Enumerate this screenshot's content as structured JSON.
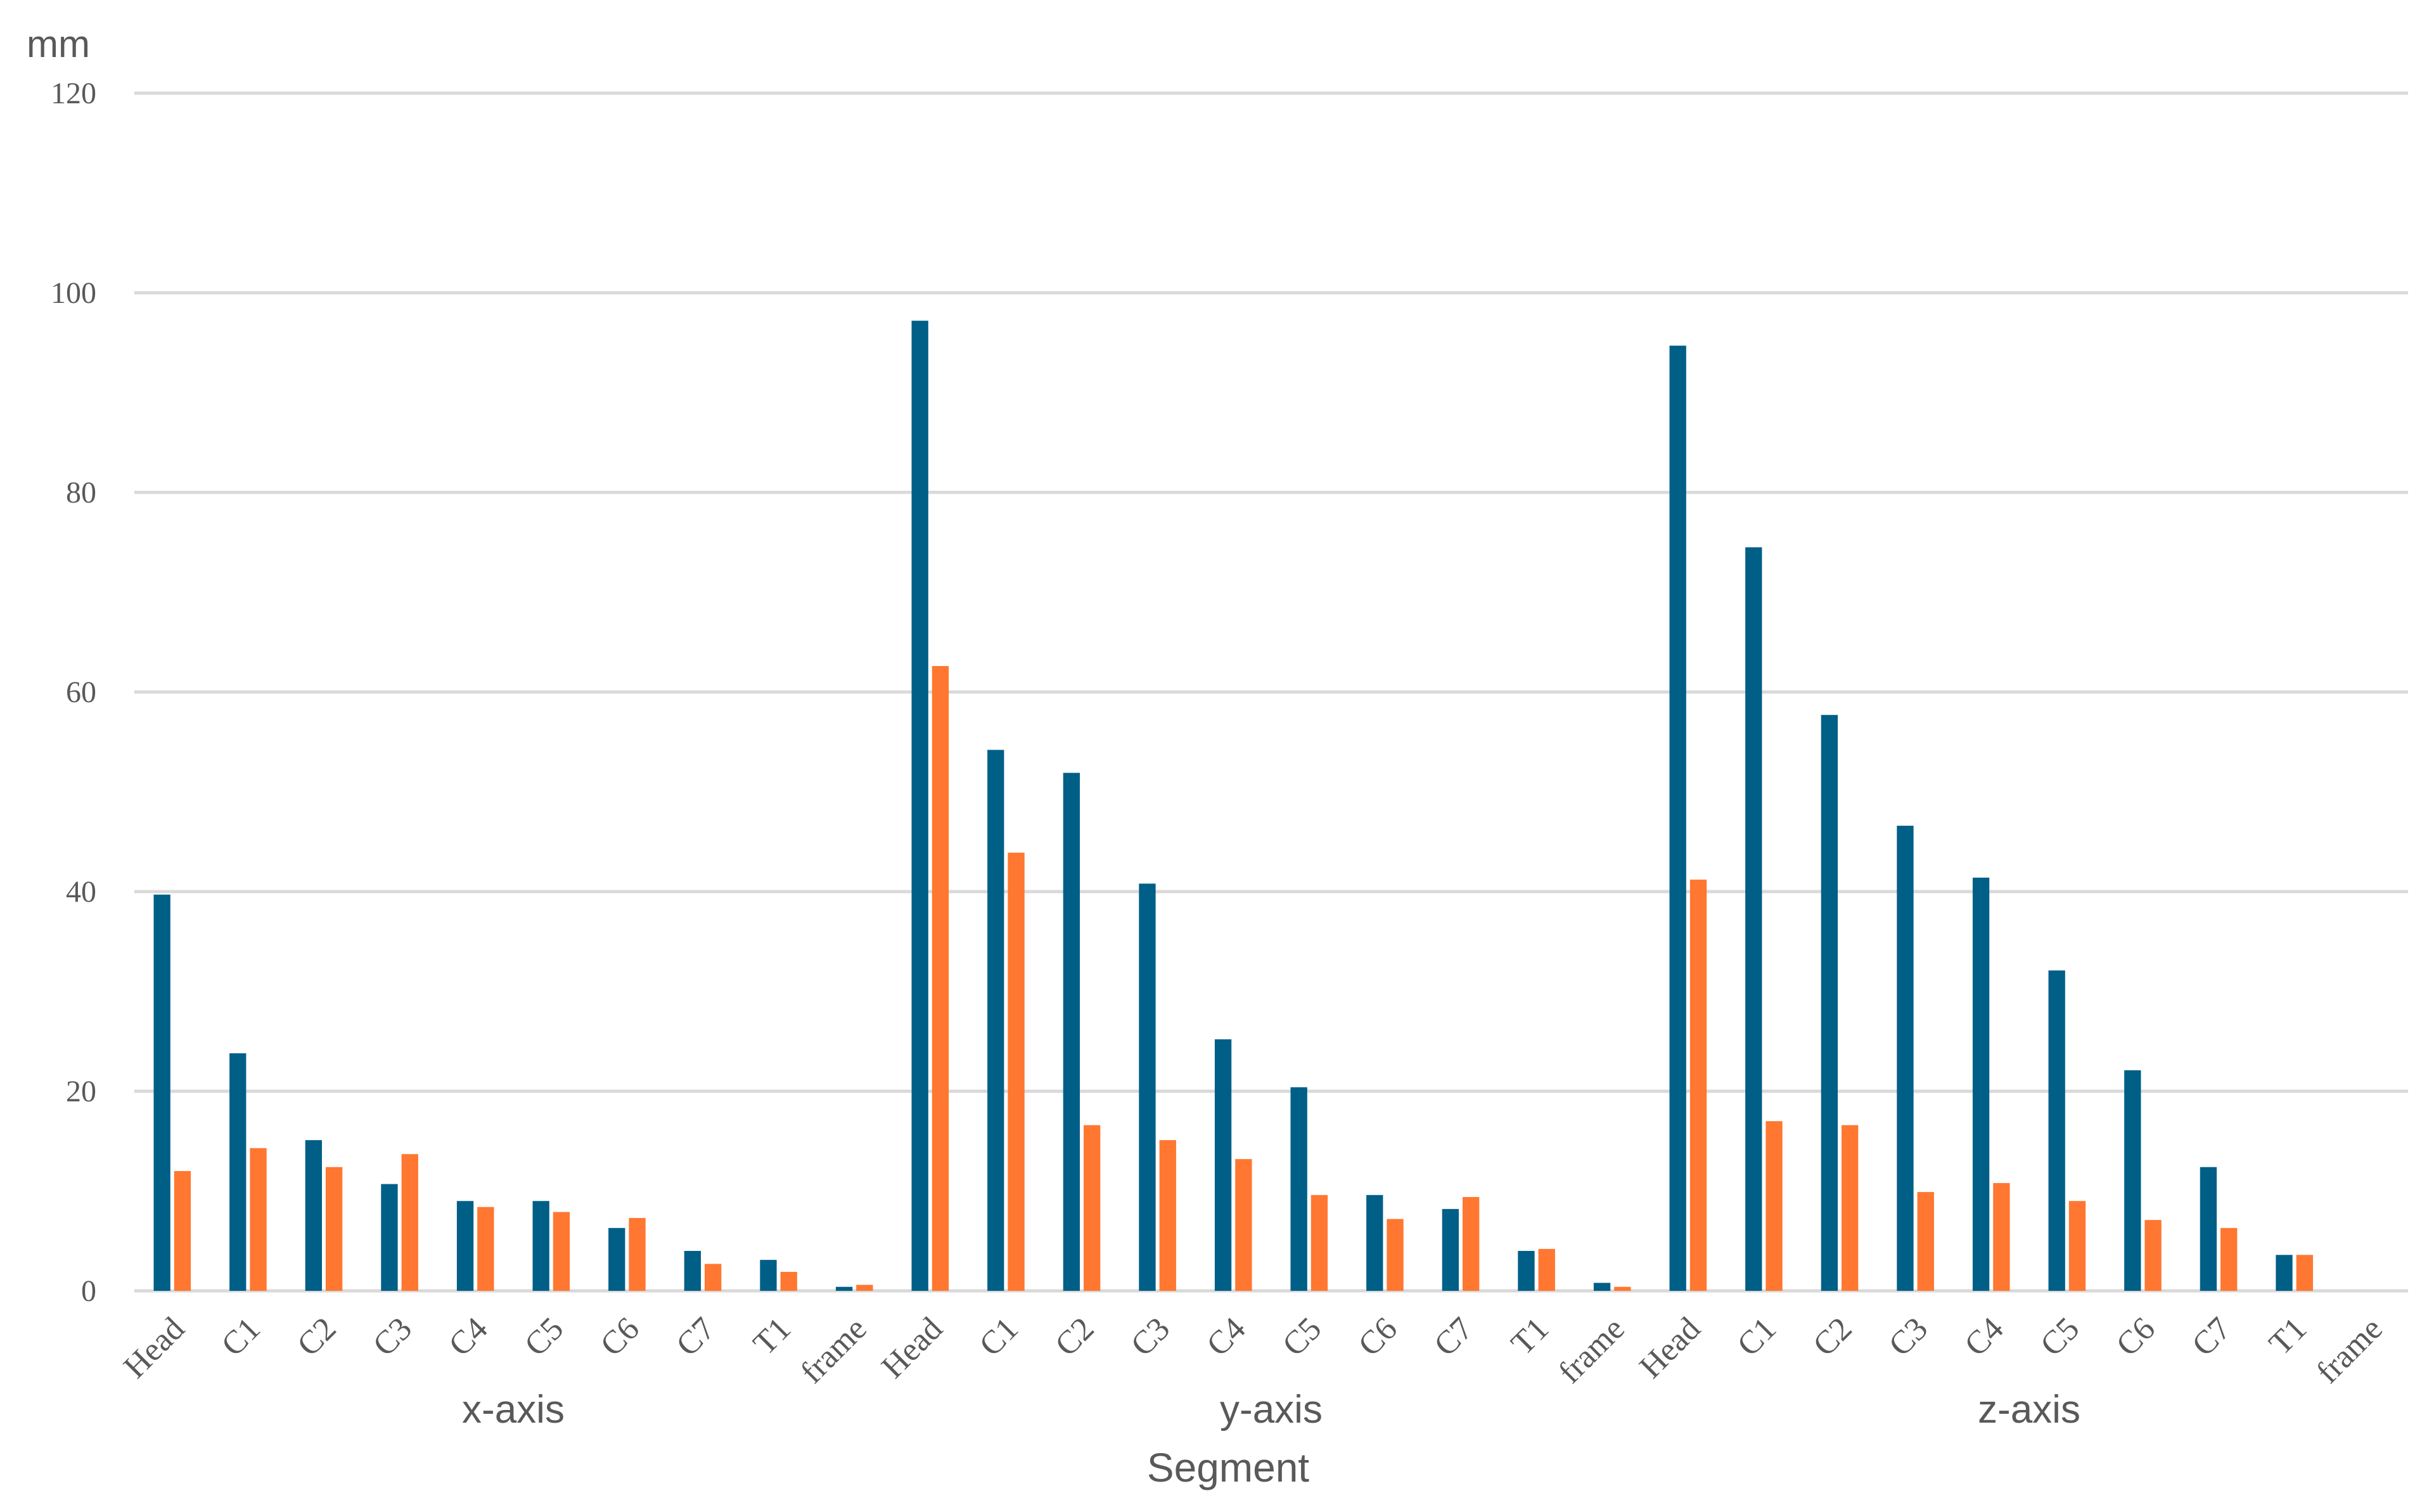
{
  "chart_data": {
    "type": "bar",
    "ylabel": "mm",
    "xlabel": "Segment",
    "ylim": [
      0,
      120
    ],
    "yticks": [
      0,
      20,
      40,
      60,
      80,
      100,
      120
    ],
    "grid": true,
    "legend": "none",
    "groups": [
      {
        "label": "x-axis",
        "categories": [
          "Head",
          "C1",
          "C2",
          "C3",
          "C4",
          "C5",
          "C6",
          "C7",
          "T1",
          "frame"
        ],
        "series": [
          {
            "values": [
              39.7,
              23.8,
              15.1,
              10.7,
              9.0,
              9.0,
              6.3,
              4.0,
              3.1,
              0.4
            ],
            "color": "#005f87"
          },
          {
            "values": [
              12.0,
              14.3,
              12.4,
              13.7,
              8.4,
              7.9,
              7.3,
              2.7,
              1.9,
              0.6
            ],
            "color": "#ff7730"
          }
        ]
      },
      {
        "label": "y-axis",
        "categories": [
          "Head",
          "C1",
          "C2",
          "C3",
          "C4",
          "C5",
          "C6",
          "C7",
          "T1",
          "frame"
        ],
        "series": [
          {
            "values": [
              97.2,
              54.2,
              51.9,
              40.8,
              25.2,
              20.4,
              9.6,
              8.2,
              4.0,
              0.8
            ],
            "color": "#005f87"
          },
          {
            "values": [
              62.6,
              43.9,
              16.6,
              15.1,
              13.2,
              9.6,
              7.2,
              9.4,
              4.2,
              0.4
            ],
            "color": "#ff7730"
          }
        ]
      },
      {
        "label": "z-axis",
        "categories": [
          "Head",
          "C1",
          "C2",
          "C3",
          "C4",
          "C5",
          "C6",
          "C7",
          "T1",
          "frame"
        ],
        "series": [
          {
            "values": [
              94.7,
              74.5,
              57.7,
              46.6,
              41.4,
              32.1,
              22.1,
              12.4,
              3.6,
              0
            ],
            "color": "#005f87"
          },
          {
            "values": [
              41.2,
              17.0,
              16.6,
              9.9,
              10.8,
              9.0,
              7.1,
              6.3,
              3.6,
              0
            ],
            "color": "#ff7730"
          }
        ]
      }
    ]
  }
}
